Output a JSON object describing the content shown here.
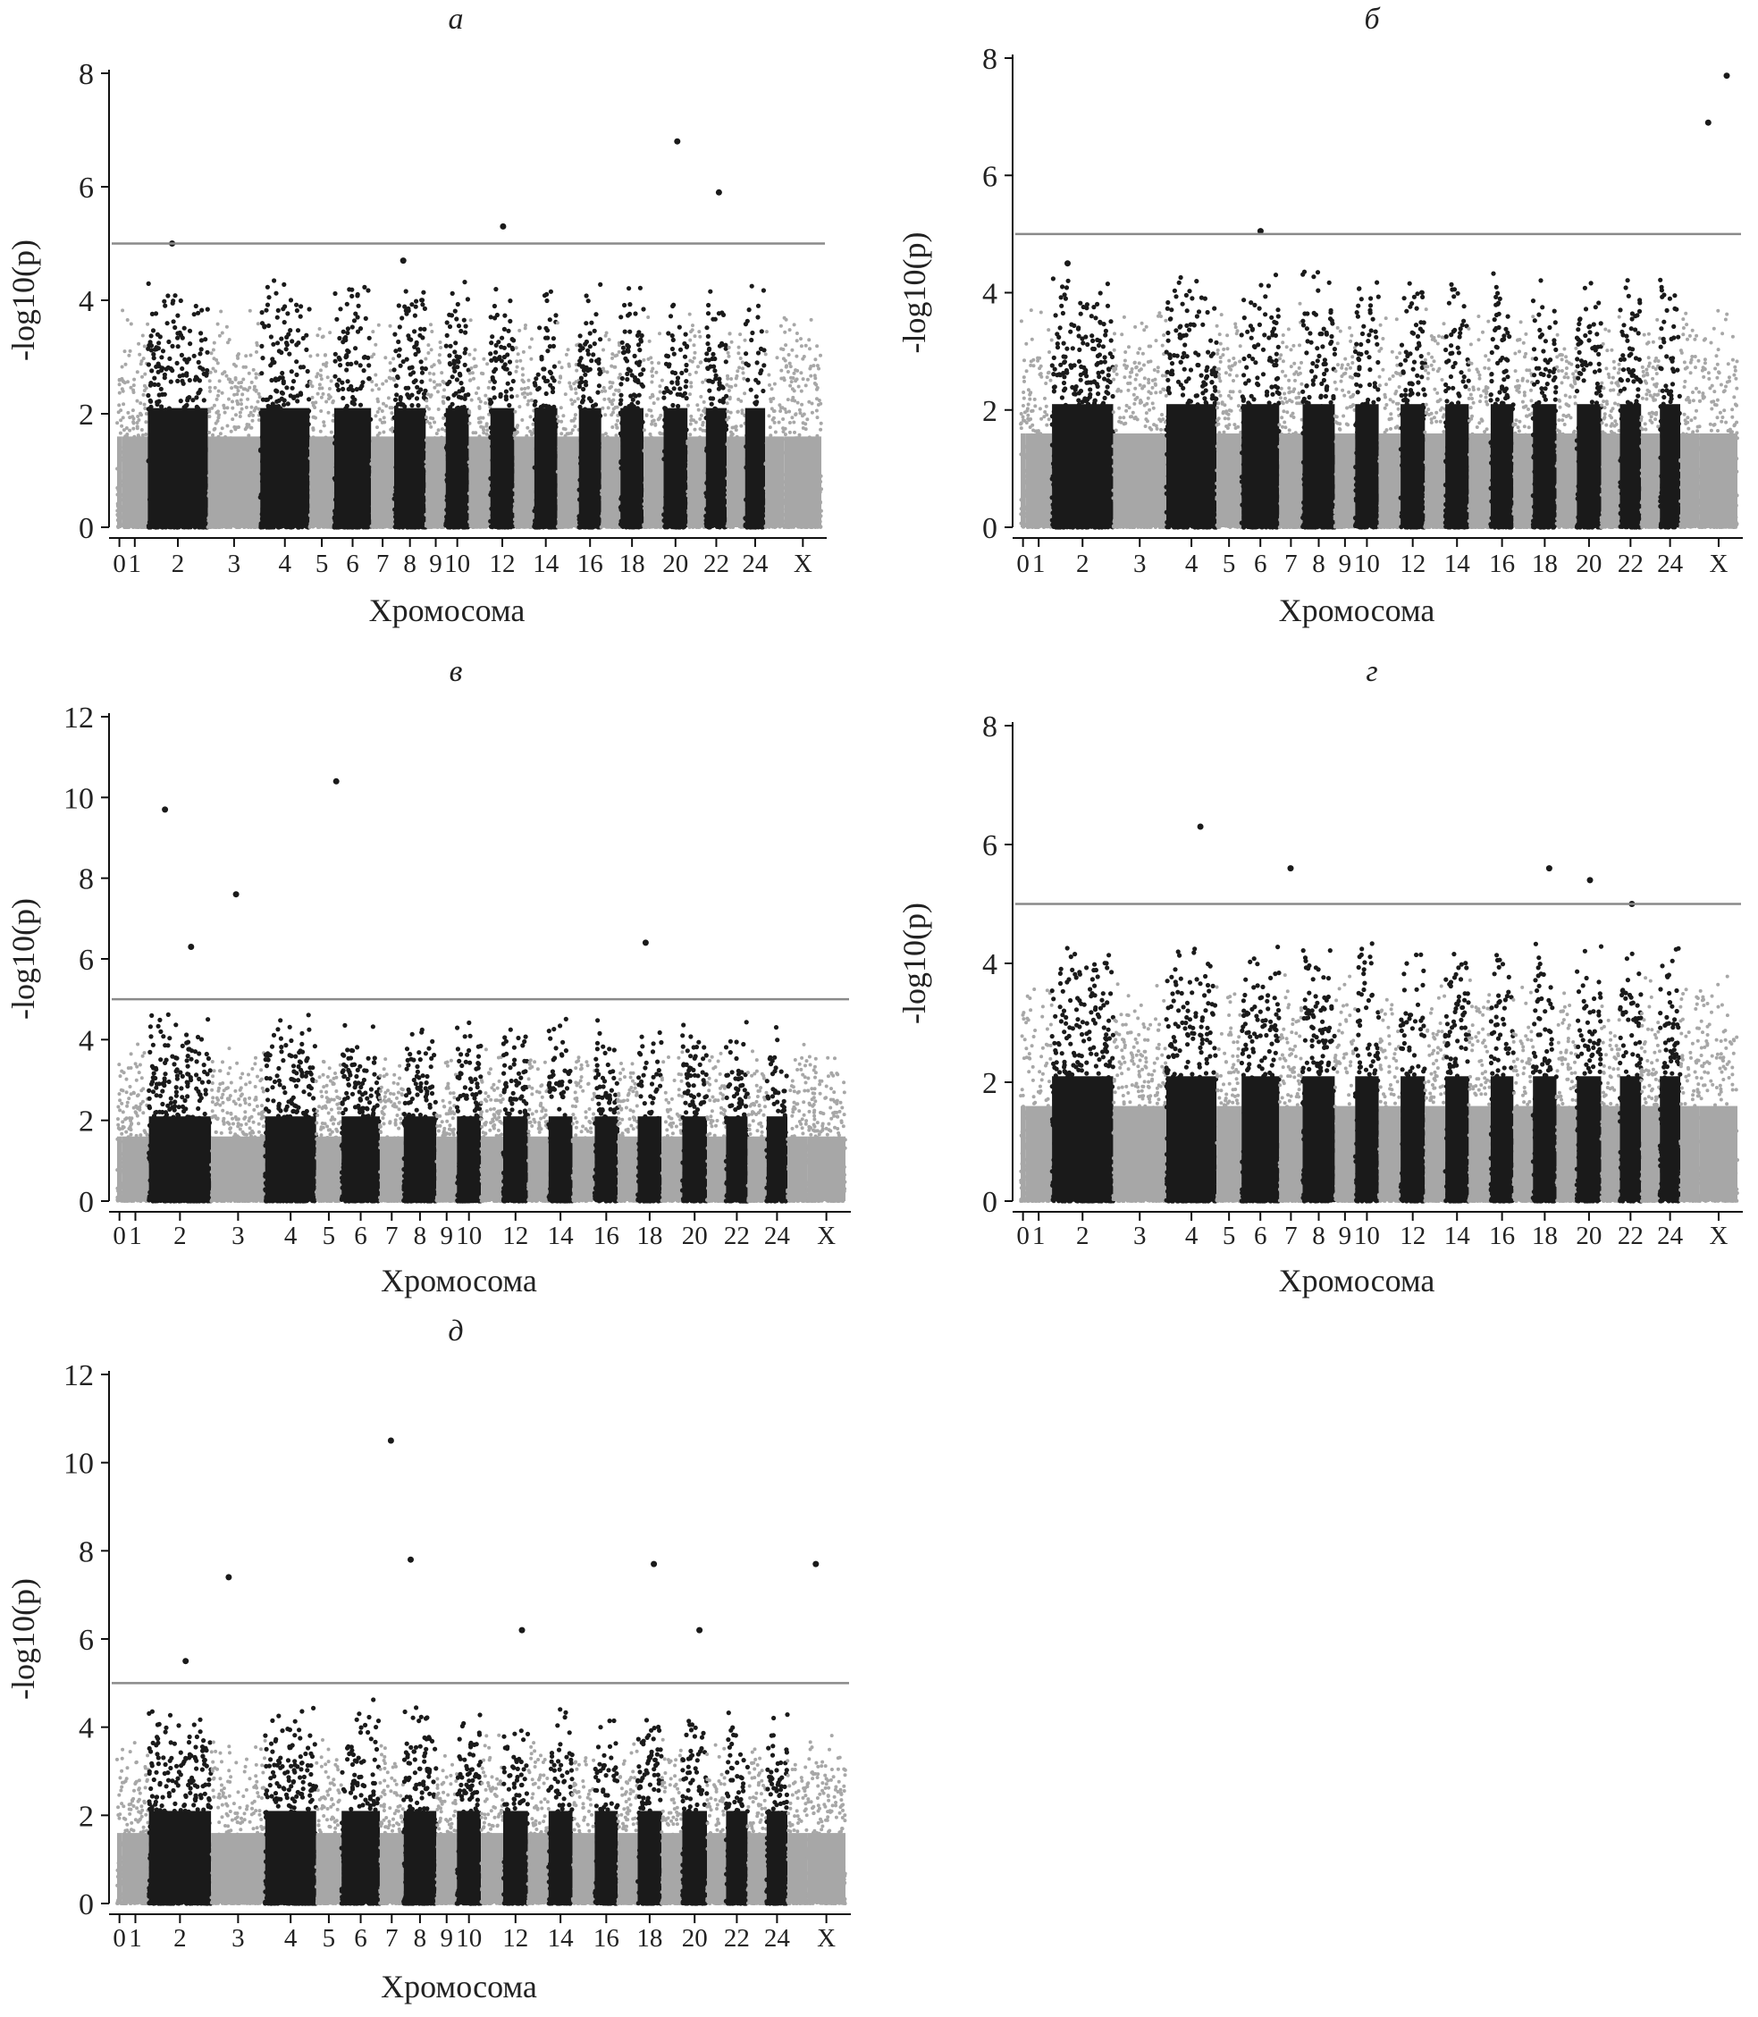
{
  "colors": {
    "dark": "#1a1a1a",
    "light": "#a7a7a7",
    "threshold": "#8a8a8a",
    "axis": "#111111"
  },
  "chart_data": [
    {
      "type": "scatter",
      "title": "а",
      "xlabel": "Хромосома",
      "ylabel": "-log10(p)",
      "ylim": [
        0,
        8
      ],
      "yticks": [
        0,
        2,
        4,
        6,
        8
      ],
      "xtick_labels": [
        "0",
        "1",
        "2",
        "3",
        "4",
        "5",
        "6",
        "7",
        "8",
        "9",
        "10",
        "12",
        "14",
        "16",
        "18",
        "20",
        "22",
        "24",
        "X"
      ],
      "threshold": 5,
      "highlight_points": [
        {
          "chrom": "2",
          "y": 5.0
        },
        {
          "chrom": "12",
          "y": 5.3
        },
        {
          "chrom": "20",
          "y": 6.8
        },
        {
          "chrom": "22",
          "y": 5.9
        },
        {
          "chrom": "8",
          "y": 4.7
        }
      ]
    },
    {
      "type": "scatter",
      "title": "б",
      "xlabel": "Хромосома",
      "ylabel": "-log10(p)",
      "ylim": [
        0,
        8
      ],
      "yticks": [
        0,
        2,
        4,
        6,
        8
      ],
      "xtick_labels": [
        "0",
        "1",
        "2",
        "3",
        "4",
        "5",
        "6",
        "7",
        "8",
        "9",
        "10",
        "12",
        "14",
        "16",
        "18",
        "20",
        "22",
        "24",
        "X"
      ],
      "threshold": 5,
      "highlight_points": [
        {
          "chrom": "6",
          "y": 5.05
        },
        {
          "chrom": "X",
          "y": 7.7
        },
        {
          "chrom": "X",
          "y": 6.9
        },
        {
          "chrom": "2",
          "y": 4.5
        }
      ]
    },
    {
      "type": "scatter",
      "title": "в",
      "xlabel": "Хромосома",
      "ylabel": "-log10(p)",
      "ylim": [
        0,
        12
      ],
      "yticks": [
        0,
        2,
        4,
        6,
        8,
        10,
        12
      ],
      "xtick_labels": [
        "0",
        "1",
        "2",
        "3",
        "4",
        "5",
        "6",
        "7",
        "8",
        "9",
        "10",
        "12",
        "14",
        "16",
        "18",
        "20",
        "22",
        "24",
        "X"
      ],
      "threshold": 5,
      "highlight_points": [
        {
          "chrom": "2",
          "y": 9.7
        },
        {
          "chrom": "5",
          "y": 10.4
        },
        {
          "chrom": "3",
          "y": 7.6
        },
        {
          "chrom": "18",
          "y": 6.4
        },
        {
          "chrom": "2",
          "y": 6.3
        }
      ]
    },
    {
      "type": "scatter",
      "title": "г",
      "xlabel": "Хромосома",
      "ylabel": "-log10(p)",
      "ylim": [
        0,
        8
      ],
      "yticks": [
        0,
        2,
        4,
        6,
        8
      ],
      "xtick_labels": [
        "0",
        "1",
        "2",
        "3",
        "4",
        "5",
        "6",
        "7",
        "8",
        "9",
        "10",
        "12",
        "14",
        "16",
        "18",
        "20",
        "22",
        "24",
        "X"
      ],
      "threshold": 5,
      "highlight_points": [
        {
          "chrom": "4",
          "y": 6.3
        },
        {
          "chrom": "7",
          "y": 5.6
        },
        {
          "chrom": "18",
          "y": 5.6
        },
        {
          "chrom": "20",
          "y": 5.4
        },
        {
          "chrom": "22",
          "y": 5.0
        }
      ]
    },
    {
      "type": "scatter",
      "title": "д",
      "xlabel": "Хромосома",
      "ylabel": "-log10(p)",
      "ylim": [
        0,
        12
      ],
      "yticks": [
        0,
        2,
        4,
        6,
        8,
        10,
        12
      ],
      "xtick_labels": [
        "0",
        "1",
        "2",
        "3",
        "4",
        "5",
        "6",
        "7",
        "8",
        "9",
        "10",
        "12",
        "14",
        "16",
        "18",
        "20",
        "22",
        "24",
        "X"
      ],
      "threshold": 5,
      "highlight_points": [
        {
          "chrom": "7",
          "y": 10.5
        },
        {
          "chrom": "8",
          "y": 7.8
        },
        {
          "chrom": "3",
          "y": 7.4
        },
        {
          "chrom": "18",
          "y": 7.7
        },
        {
          "chrom": "X",
          "y": 7.7
        },
        {
          "chrom": "12",
          "y": 6.2
        },
        {
          "chrom": "20",
          "y": 6.2
        },
        {
          "chrom": "2",
          "y": 5.5
        }
      ]
    }
  ]
}
